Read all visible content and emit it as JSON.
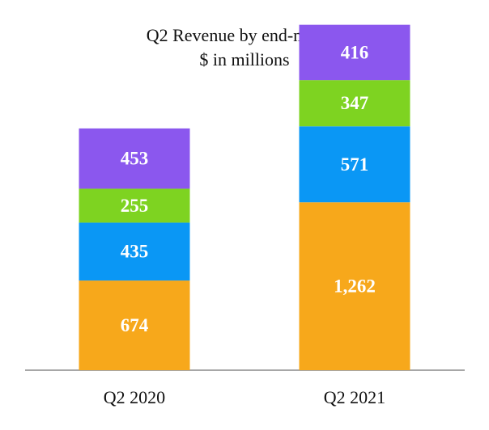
{
  "chart_data": {
    "type": "bar",
    "stacked": true,
    "title": "Q2 Revenue by end-market",
    "subtitle": "$ in millions",
    "categories": [
      "Q2 2020",
      "Q2 2021"
    ],
    "series": [
      {
        "values": [
          674,
          1262
        ],
        "labels": [
          "674",
          "1,262"
        ],
        "color": "#F7A81B"
      },
      {
        "values": [
          435,
          571
        ],
        "labels": [
          "435",
          "571"
        ],
        "color": "#0A97F5"
      },
      {
        "values": [
          255,
          347
        ],
        "labels": [
          "255",
          "347"
        ],
        "color": "#7ED321"
      },
      {
        "values": [
          453,
          416
        ],
        "labels": [
          "453",
          "416"
        ],
        "color": "#8B57EE"
      }
    ],
    "ylim": [
      0,
      2600
    ],
    "grid": false,
    "legend": "none"
  }
}
